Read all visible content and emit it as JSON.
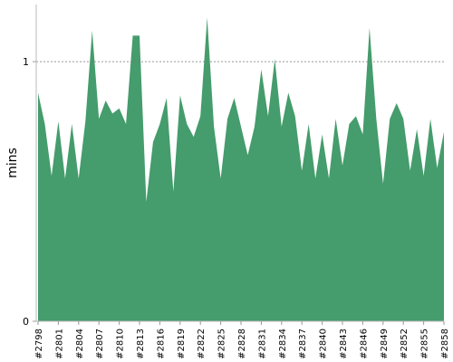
{
  "chart_data": {
    "type": "area",
    "y_label": "mins",
    "categories": [
      "#2798",
      null,
      null,
      "#2801",
      null,
      null,
      "#2804",
      null,
      null,
      "#2807",
      null,
      null,
      "#2810",
      null,
      null,
      "#2813",
      null,
      null,
      "#2816",
      null,
      null,
      "#2819",
      null,
      null,
      "#2822",
      null,
      null,
      "#2825",
      null,
      null,
      "#2828",
      null,
      null,
      "#2831",
      null,
      null,
      "#2834",
      null,
      null,
      "#2837",
      null,
      null,
      "#2840",
      null,
      null,
      "#2843",
      null,
      null,
      "#2846",
      null,
      null,
      "#2849",
      null,
      null,
      "#2852",
      null,
      null,
      "#2855",
      null,
      null,
      "#2858"
    ],
    "values": [
      0.88,
      0.76,
      0.56,
      0.77,
      0.55,
      0.76,
      0.55,
      0.77,
      1.12,
      0.78,
      0.85,
      0.8,
      0.82,
      0.76,
      1.1,
      1.1,
      0.46,
      0.69,
      0.76,
      0.86,
      0.5,
      0.87,
      0.76,
      0.71,
      0.79,
      1.17,
      0.75,
      0.55,
      0.78,
      0.86,
      0.75,
      0.64,
      0.75,
      0.97,
      0.79,
      1.01,
      0.75,
      0.88,
      0.79,
      0.58,
      0.76,
      0.55,
      0.72,
      0.55,
      0.78,
      0.6,
      0.76,
      0.79,
      0.72,
      1.13,
      0.78,
      0.53,
      0.78,
      0.84,
      0.78,
      0.58,
      0.74,
      0.56,
      0.78,
      0.59,
      0.73
    ],
    "color": "#459c6c",
    "ylim": [
      0,
      1.22
    ],
    "yticks": [
      0,
      1
    ],
    "grid": true
  }
}
